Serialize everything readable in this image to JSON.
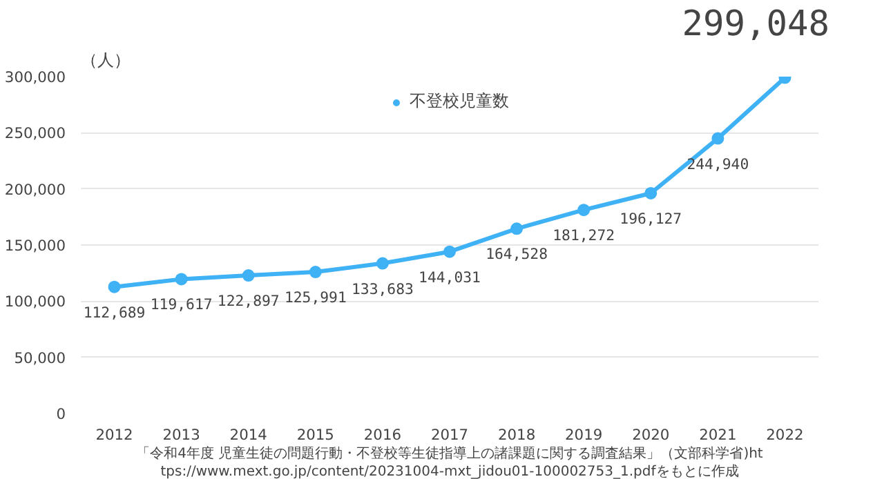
{
  "chart_data": {
    "type": "line",
    "ylabel": "（人）",
    "categories": [
      "2012",
      "2013",
      "2014",
      "2015",
      "2016",
      "2017",
      "2018",
      "2019",
      "2020",
      "2021",
      "2022"
    ],
    "series": [
      {
        "name": "不登校児童数",
        "color": "#3fb1f5",
        "values": [
          112689,
          119617,
          122897,
          125991,
          133683,
          144031,
          164528,
          181272,
          196127,
          244940,
          299048
        ],
        "value_labels": [
          "112,689",
          "119,617",
          "122,897",
          "125,991",
          "133,683",
          "144,031",
          "164,528",
          "181,272",
          "196,127",
          "244,940",
          null
        ]
      }
    ],
    "ylim": [
      0,
      300000
    ],
    "yticks": [
      {
        "value": 0,
        "label": "0"
      },
      {
        "value": 50000,
        "label": "50,000"
      },
      {
        "value": 100000,
        "label": "100,000"
      },
      {
        "value": 150000,
        "label": "150,000"
      },
      {
        "value": 200000,
        "label": "200,000"
      },
      {
        "value": 250000,
        "label": "250,000"
      },
      {
        "value": 300000,
        "label": "300,000"
      }
    ],
    "grid": "y",
    "legend": "top",
    "marker": "circle",
    "line_style": "solid",
    "annotations": [
      {
        "text": "299,048",
        "x": "2022",
        "y": 299048
      },
      "「令和4年度 児童生徒の問題行動・不登校等生徒指導上の諸課題に関する調査結果」（文部科学省)https://www.mext.go.jp/content/20231004-mxt_jidou01-100002753_1.pdfをもとに作成"
    ]
  }
}
